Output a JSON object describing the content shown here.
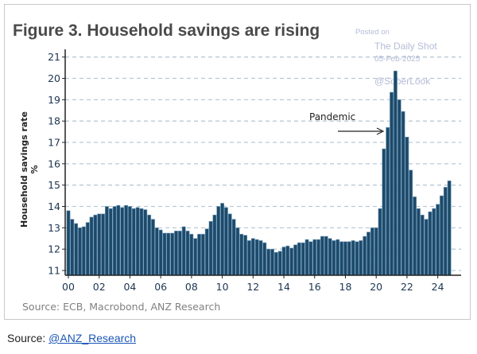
{
  "chart_data": {
    "type": "bar",
    "title": "Figure 3. Household savings are rising",
    "ylabel": "Household savings rate %",
    "source": "Source: ECB, Macrobond, ANZ Research",
    "annotation": "Pandemic",
    "ylim": [
      11,
      21
    ],
    "yticks": [
      "11",
      "12",
      "13",
      "14",
      "15",
      "16",
      "17",
      "18",
      "19",
      "20",
      "21"
    ],
    "xticks": [
      "00",
      "02",
      "04",
      "06",
      "08",
      "10",
      "12",
      "14",
      "16",
      "18",
      "20",
      "22",
      "24"
    ],
    "grid": true,
    "bar_color": "#1d4a6b",
    "x_start": "2000Q1",
    "frequency": "quarterly",
    "values": [
      13.8,
      13.4,
      13.2,
      13.0,
      13.05,
      13.25,
      13.5,
      13.6,
      13.65,
      13.65,
      14.0,
      13.9,
      14.0,
      14.05,
      13.95,
      14.05,
      14.0,
      13.9,
      13.95,
      13.9,
      13.85,
      13.6,
      13.4,
      13.0,
      12.9,
      12.75,
      12.75,
      12.75,
      12.85,
      12.85,
      13.05,
      12.85,
      12.7,
      12.5,
      12.7,
      12.7,
      12.95,
      13.3,
      13.6,
      14.0,
      14.15,
      13.95,
      13.65,
      13.4,
      13.0,
      12.7,
      12.65,
      12.4,
      12.5,
      12.45,
      12.4,
      12.3,
      12.0,
      12.0,
      11.85,
      11.9,
      12.1,
      12.15,
      12.05,
      12.2,
      12.3,
      12.3,
      12.45,
      12.35,
      12.45,
      12.45,
      12.6,
      12.6,
      12.5,
      12.4,
      12.45,
      12.35,
      12.35,
      12.35,
      12.4,
      12.35,
      12.4,
      12.6,
      12.8,
      13.0,
      13.0,
      13.9,
      16.7,
      17.7,
      19.35,
      20.35,
      19.0,
      18.45,
      17.25,
      15.7,
      14.45,
      13.9,
      13.6,
      13.4,
      13.75,
      13.9,
      14.1,
      14.5,
      14.9,
      15.2
    ]
  },
  "watermark": {
    "posted": "Posted on",
    "site": "The Daily Shot",
    "date": "05-Feb-2025",
    "handle": "@SoberLook"
  },
  "footer": {
    "label": "Source:",
    "link": "@ANZ_Research"
  }
}
